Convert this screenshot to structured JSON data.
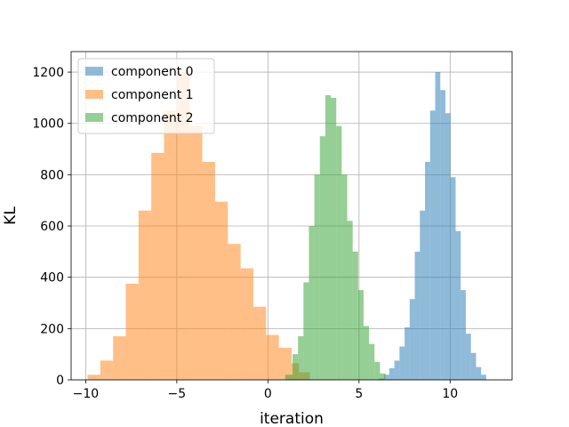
{
  "chart_data": {
    "type": "bar",
    "title": "",
    "xlabel": "iteration",
    "ylabel": "KL",
    "xlim": [
      -10.8,
      13.4
    ],
    "ylim": [
      0,
      1280
    ],
    "xticks": [
      -10,
      -5,
      0,
      5,
      10
    ],
    "yticks": [
      0,
      200,
      400,
      600,
      800,
      1000,
      1200
    ],
    "xtick_labels": [
      "−10",
      "−5",
      "0",
      "5",
      "10"
    ],
    "ytick_labels": [
      "0",
      "200",
      "400",
      "600",
      "800",
      "1000",
      "1200"
    ],
    "grid": true,
    "legend_position": "top-left",
    "series": [
      {
        "name": "component 0",
        "color": "#1f77b4",
        "opacity": 0.5,
        "bin_edges": [
          6.1,
          6.38,
          6.66,
          6.94,
          7.22,
          7.5,
          7.78,
          8.06,
          8.34,
          8.62,
          8.9,
          9.18,
          9.46,
          9.74,
          10.02,
          10.3,
          10.58,
          10.86,
          11.14,
          11.42,
          11.7,
          11.98
        ],
        "counts": [
          5,
          20,
          45,
          75,
          130,
          205,
          315,
          500,
          660,
          850,
          1050,
          1200,
          1130,
          1040,
          790,
          580,
          350,
          180,
          105,
          50,
          20
        ]
      },
      {
        "name": "component 1",
        "color": "#ff7f0e",
        "opacity": 0.5,
        "bin_edges": [
          -9.9,
          -9.2,
          -8.5,
          -7.8,
          -7.1,
          -6.4,
          -5.7,
          -5.0,
          -4.3,
          -3.6,
          -2.9,
          -2.2,
          -1.5,
          -0.8,
          -0.1,
          0.6,
          1.3,
          1.7,
          2.3
        ],
        "counts": [
          20,
          75,
          170,
          375,
          660,
          885,
          1050,
          1200,
          990,
          850,
          695,
          530,
          435,
          285,
          175,
          125,
          65,
          30
        ]
      },
      {
        "name": "component 2",
        "color": "#2ca02c",
        "opacity": 0.5,
        "bin_edges": [
          0.95,
          1.35,
          1.65,
          1.95,
          2.25,
          2.55,
          2.85,
          3.15,
          3.45,
          3.75,
          4.05,
          4.35,
          4.65,
          4.95,
          5.25,
          5.55,
          5.85,
          6.15,
          6.45
        ],
        "counts": [
          20,
          100,
          170,
          380,
          600,
          800,
          950,
          1110,
          1100,
          990,
          800,
          620,
          500,
          350,
          210,
          140,
          70,
          25
        ]
      }
    ]
  }
}
